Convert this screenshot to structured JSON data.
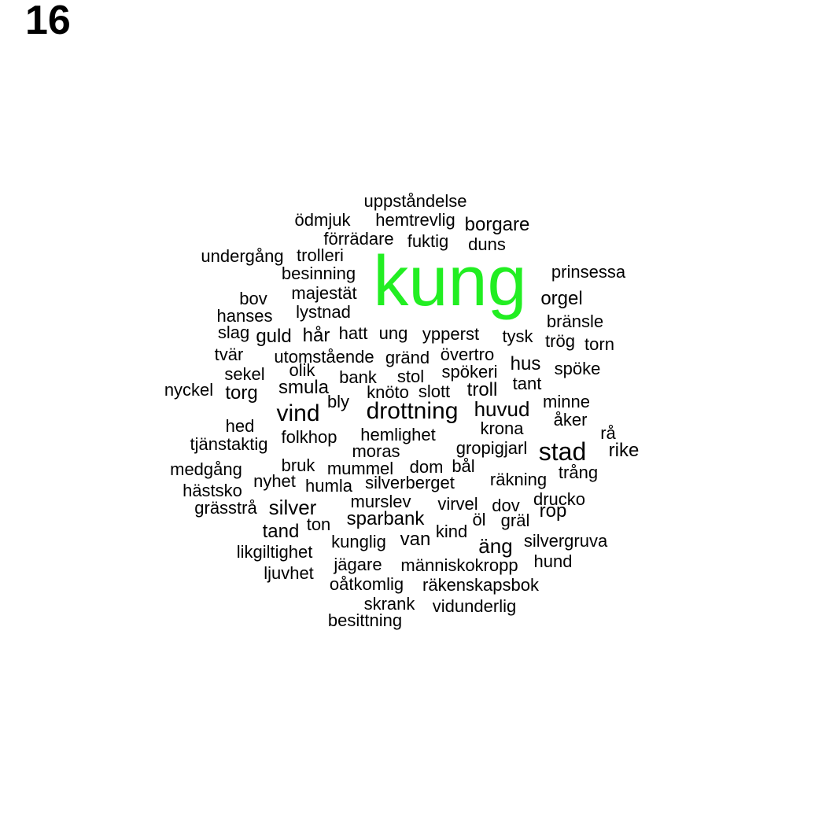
{
  "panel_label": "16",
  "highlight_color": "#22ee22",
  "text_color": "#000000",
  "words": [
    "uppståndelse",
    "ödmjuk",
    "hemtrevlig",
    "borgare",
    "förrädare",
    "fuktig",
    "duns",
    "undergång",
    "trolleri",
    "besinning",
    "kung",
    "prinsessa",
    "bov",
    "majestät",
    "orgel",
    "lystnad",
    "hanses",
    "bränsle",
    "slag",
    "guld",
    "hår",
    "hatt",
    "ung",
    "ypperst",
    "tysk",
    "trög",
    "torn",
    "tvär",
    "utomstående",
    "gränd",
    "övertro",
    "hus",
    "sekel",
    "olik",
    "spökeri",
    "spöke",
    "bank",
    "stol",
    "tant",
    "nyckel",
    "torg",
    "smula",
    "knöto",
    "slott",
    "troll",
    "bly",
    "minne",
    "vind",
    "drottning",
    "huvud",
    "åker",
    "hed",
    "krona",
    "folkhop",
    "hemlighet",
    "rå",
    "tjänstaktig",
    "moras",
    "gropigjarl",
    "stad",
    "rike",
    "medgång",
    "bruk",
    "mummel",
    "dom",
    "bål",
    "trång",
    "nyhet",
    "humla",
    "silverberget",
    "räkning",
    "hästsko",
    "murslev",
    "virvel",
    "drucko",
    "grässtrå",
    "silver",
    "dov",
    "rop",
    "sparbank",
    "öl",
    "gräl",
    "tand",
    "ton",
    "kind",
    "kunglig",
    "van",
    "silvergruva",
    "likgiltighet",
    "äng",
    "jägare",
    "människokropp",
    "hund",
    "ljuvhet",
    "oåtkomlig",
    "räkenskapsbok",
    "skrank",
    "vidunderlig",
    "besittning"
  ]
}
